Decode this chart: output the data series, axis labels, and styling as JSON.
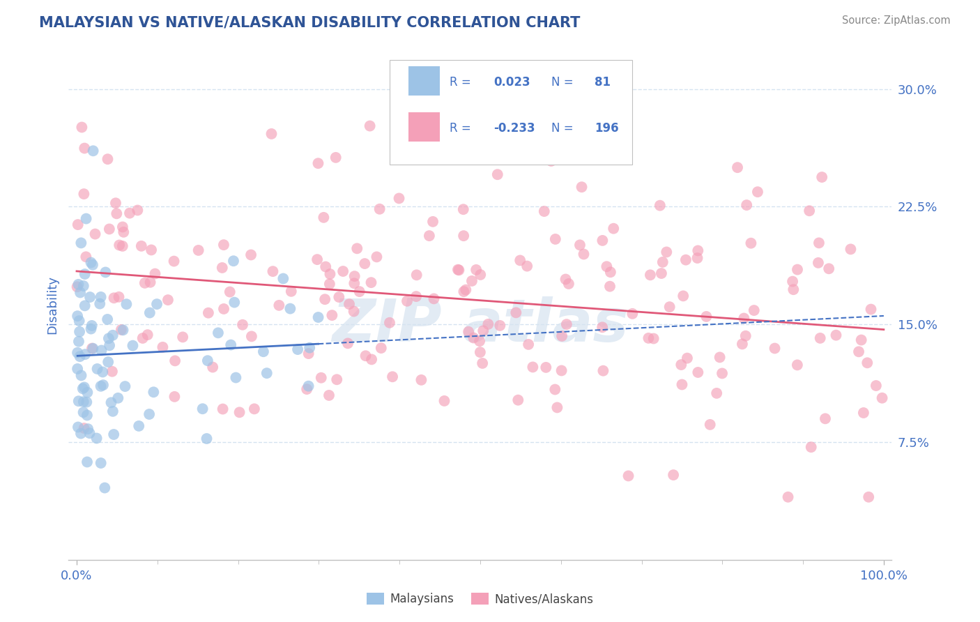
{
  "title": "MALAYSIAN VS NATIVE/ALASKAN DISABILITY CORRELATION CHART",
  "source": "Source: ZipAtlas.com",
  "ylabel": "Disability",
  "yticks": [
    0.075,
    0.15,
    0.225,
    0.3
  ],
  "ytick_labels": [
    "7.5%",
    "15.0%",
    "22.5%",
    "30.0%"
  ],
  "r_malaysian": 0.023,
  "n_malaysian": 81,
  "r_native": -0.233,
  "n_native": 196,
  "color_malaysian": "#9dc3e6",
  "color_native": "#f4a0b8",
  "line_color_malaysian": "#4472c4",
  "line_color_native": "#e05878",
  "legend_sq1_color": "#9dc3e6",
  "legend_sq2_color": "#f4a0b8",
  "legend_r1_val": "0.023",
  "legend_r2_val": "-0.233",
  "legend_n1_val": "81",
  "legend_n2_val": "196",
  "legend_text_color": "#4472c4",
  "background_color": "#ffffff",
  "grid_color": "#d5e3f0",
  "title_color": "#2f5496",
  "axis_label_color": "#4472c4",
  "tick_color": "#4472c4",
  "bottom_legend_malaysians": "Malaysians",
  "bottom_legend_natives": "Natives/Alaskans",
  "watermark_text": "ZIP atlas",
  "watermark_color": "#cfdeed"
}
